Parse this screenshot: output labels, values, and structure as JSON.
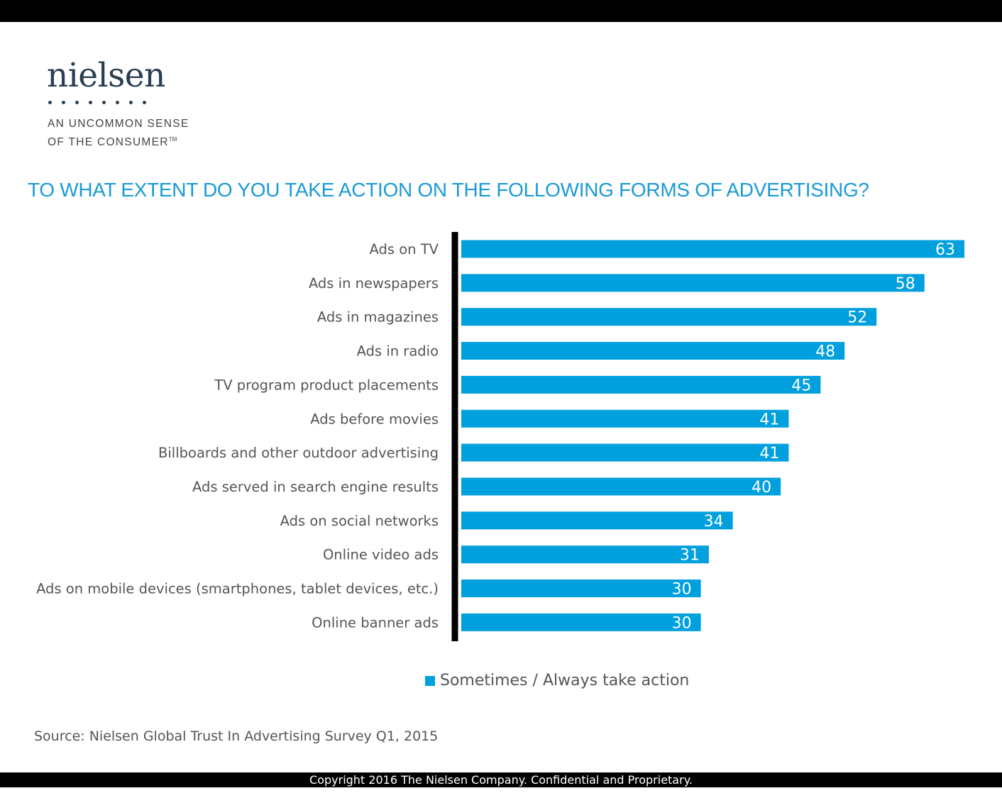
{
  "logo": {
    "wordmark": "nielsen",
    "tagline_line1": "AN UNCOMMON SENSE",
    "tagline_line2": "OF THE CONSUMER",
    "trademark": "TM"
  },
  "colors": {
    "bar": "#00a0de",
    "title": "#1a9ad6",
    "axis": "#000000",
    "logo": "#2a3d52"
  },
  "chart_data": {
    "type": "bar",
    "orientation": "horizontal",
    "title": "TO WHAT EXTENT DO YOU TAKE ACTION ON THE FOLLOWING FORMS OF ADVERTISING?",
    "categories": [
      "Ads on TV",
      "Ads in newspapers",
      "Ads in magazines",
      "Ads in radio",
      "TV program product placements",
      "Ads before movies",
      "Billboards and other outdoor advertising",
      "Ads served in search engine results",
      "Ads on social networks",
      "Online video ads",
      "Ads on mobile devices (smartphones, tablet devices, etc.)",
      "Online banner ads"
    ],
    "series": [
      {
        "name": "Sometimes / Always take action",
        "values": [
          63,
          58,
          52,
          48,
          45,
          41,
          41,
          40,
          34,
          31,
          30,
          30
        ]
      }
    ],
    "xlim": [
      0,
      63
    ],
    "grid": false,
    "data_labels": true,
    "legend_position": "bottom"
  },
  "legend_label": "Sometimes / Always take action",
  "source": "Source: Nielsen Global Trust In Advertising Survey Q1, 2015",
  "footer": "Copyright 2016 The Nielsen Company. Confidential and Proprietary."
}
